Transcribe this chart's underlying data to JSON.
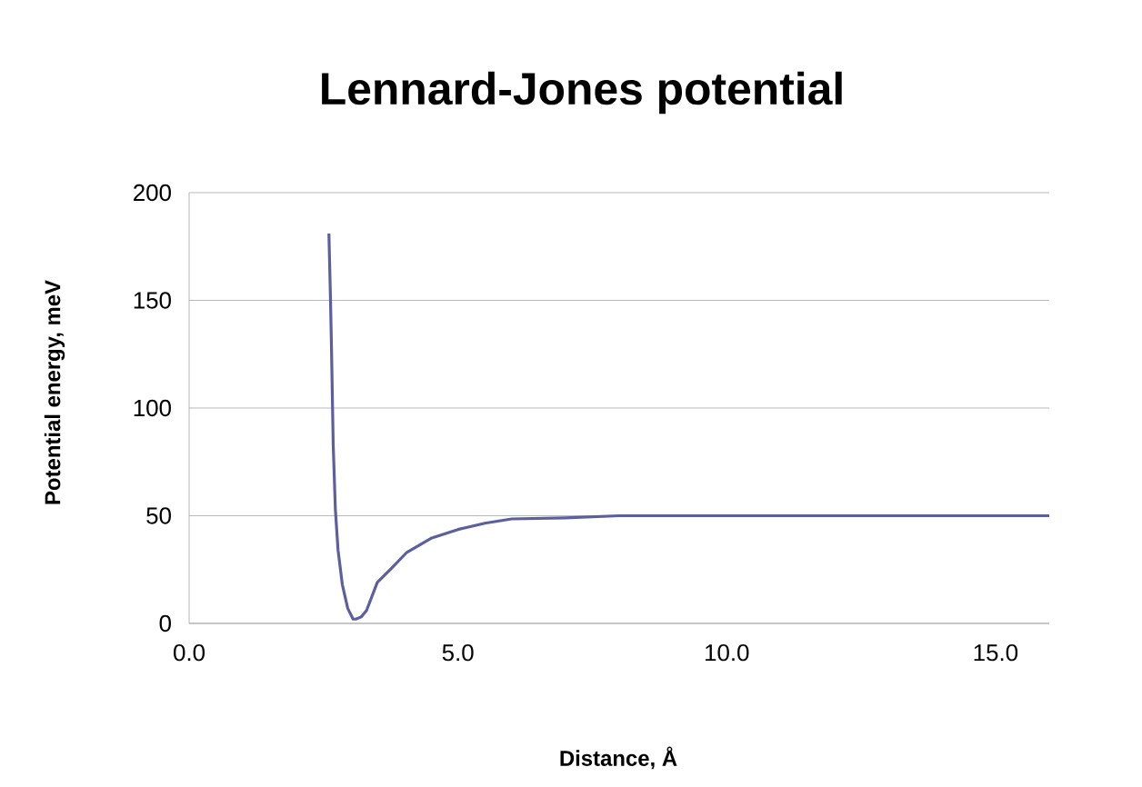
{
  "chart_data": {
    "type": "line",
    "title": "Lennard-Jones potential",
    "xlabel": "Distance, Å",
    "ylabel": "Potential energy, meV",
    "xlim": [
      0,
      16
    ],
    "ylim": [
      0,
      200
    ],
    "xticks": [
      {
        "value": 0,
        "label": "0.0"
      },
      {
        "value": 5,
        "label": "5.0"
      },
      {
        "value": 10,
        "label": "10.0"
      },
      {
        "value": 15,
        "label": "15.0"
      }
    ],
    "yticks": [
      0,
      50,
      100,
      150,
      200
    ],
    "grid": "y",
    "marker": "none",
    "line_style": "solid",
    "series": [
      {
        "color": "#5b5f9e",
        "x": [
          2.6,
          2.63,
          2.65,
          2.68,
          2.72,
          2.77,
          2.85,
          2.95,
          3.05,
          3.1,
          3.2,
          3.3,
          3.5,
          3.78,
          4.05,
          4.5,
          5.0,
          5.5,
          6.0,
          7.0,
          8.0,
          10.0,
          12.0,
          14.0,
          16.0
        ],
        "values": [
          181,
          150,
          125,
          83,
          53,
          34,
          18,
          7,
          2,
          2,
          3,
          6,
          19,
          26,
          33,
          39.5,
          43.6,
          46.5,
          48.5,
          49,
          50,
          50,
          50,
          50,
          50
        ]
      }
    ]
  }
}
